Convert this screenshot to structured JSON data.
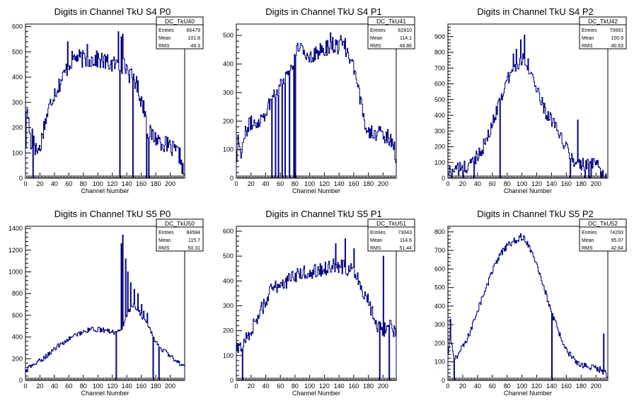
{
  "canvas": {
    "background": "#ffffff",
    "line_color": "#000080"
  },
  "chart_data": [
    {
      "type": "histogram",
      "title": "Digits in Channel TkU S4 P0",
      "xlabel": "Channel Number",
      "ylabel": "",
      "xlim": [
        0,
        220
      ],
      "ylim": [
        0,
        610
      ],
      "xticks": [
        0,
        20,
        40,
        60,
        80,
        100,
        120,
        140,
        160,
        180,
        200
      ],
      "yticks": [
        0,
        100,
        200,
        300,
        400,
        500,
        600
      ],
      "stats": {
        "name": "DC_TkU40",
        "entries": "66479",
        "mean": "101.8",
        "rms": "48.3"
      },
      "profile": [
        [
          0,
          90
        ],
        [
          2,
          290
        ],
        [
          5,
          210
        ],
        [
          8,
          120
        ],
        [
          10,
          215
        ],
        [
          14,
          110
        ],
        [
          20,
          115
        ],
        [
          25,
          200
        ],
        [
          30,
          250
        ],
        [
          35,
          300
        ],
        [
          40,
          340
        ],
        [
          45,
          360
        ],
        [
          50,
          390
        ],
        [
          55,
          420
        ],
        [
          60,
          450
        ],
        [
          65,
          470
        ],
        [
          70,
          480
        ],
        [
          80,
          470
        ],
        [
          90,
          470
        ],
        [
          100,
          470
        ],
        [
          110,
          460
        ],
        [
          120,
          450
        ],
        [
          130,
          450
        ],
        [
          140,
          440
        ],
        [
          145,
          400
        ],
        [
          150,
          400
        ],
        [
          155,
          360
        ],
        [
          160,
          310
        ],
        [
          165,
          270
        ],
        [
          170,
          180
        ],
        [
          180,
          160
        ],
        [
          190,
          140
        ],
        [
          200,
          120
        ],
        [
          210,
          100
        ],
        [
          215,
          80
        ],
        [
          218,
          20
        ]
      ],
      "noise": 35,
      "dips": [
        [
          10,
          0
        ],
        [
          130,
          0
        ],
        [
          148,
          0
        ],
        [
          167,
          0
        ],
        [
          170,
          0
        ]
      ],
      "spikes": [
        [
          58,
          540
        ],
        [
          85,
          530
        ],
        [
          128,
          580
        ],
        [
          132,
          560
        ],
        [
          134,
          570
        ]
      ]
    },
    {
      "type": "histogram",
      "title": "Digits in Channel TkU S4 P1",
      "xlabel": "Channel Number",
      "ylabel": "",
      "xlim": [
        0,
        218
      ],
      "ylim": [
        0,
        540
      ],
      "xticks": [
        0,
        20,
        40,
        60,
        80,
        100,
        120,
        140,
        160,
        180,
        200
      ],
      "yticks": [
        0,
        100,
        200,
        300,
        400,
        500
      ],
      "stats": {
        "name": "DC_TkU41",
        "entries": "62810",
        "mean": "114.1",
        "rms": "49.86"
      },
      "profile": [
        [
          0,
          40
        ],
        [
          2,
          150
        ],
        [
          6,
          90
        ],
        [
          10,
          130
        ],
        [
          15,
          180
        ],
        [
          20,
          190
        ],
        [
          30,
          200
        ],
        [
          40,
          230
        ],
        [
          50,
          290
        ],
        [
          60,
          330
        ],
        [
          70,
          370
        ],
        [
          80,
          420
        ],
        [
          85,
          470
        ],
        [
          90,
          440
        ],
        [
          100,
          430
        ],
        [
          110,
          440
        ],
        [
          120,
          450
        ],
        [
          130,
          470
        ],
        [
          140,
          460
        ],
        [
          150,
          450
        ],
        [
          160,
          380
        ],
        [
          165,
          320
        ],
        [
          170,
          260
        ],
        [
          175,
          200
        ],
        [
          180,
          170
        ],
        [
          190,
          160
        ],
        [
          200,
          150
        ],
        [
          210,
          140
        ],
        [
          215,
          120
        ],
        [
          217,
          70
        ]
      ],
      "noise": 28,
      "dips": [
        [
          48,
          0
        ],
        [
          53,
          0
        ],
        [
          57,
          0
        ],
        [
          62,
          0
        ],
        [
          66,
          0
        ],
        [
          72,
          0
        ],
        [
          78,
          0
        ],
        [
          80,
          0
        ]
      ],
      "spikes": [
        [
          128,
          510
        ],
        [
          142,
          500
        ],
        [
          148,
          490
        ]
      ]
    },
    {
      "type": "histogram",
      "title": "Digits in Channel TkU S4 P2",
      "xlabel": "Channel Number",
      "ylabel": "",
      "xlim": [
        0,
        216
      ],
      "ylim": [
        0,
        980
      ],
      "xticks": [
        0,
        20,
        40,
        60,
        80,
        100,
        120,
        140,
        160,
        180,
        200
      ],
      "yticks": [
        0,
        100,
        200,
        300,
        400,
        500,
        600,
        700,
        800,
        900
      ],
      "stats": {
        "name": "DC_TkU42",
        "entries": "70691",
        "mean": "100.9",
        "rms": "40.53"
      },
      "profile": [
        [
          0,
          30
        ],
        [
          5,
          60
        ],
        [
          10,
          70
        ],
        [
          15,
          50
        ],
        [
          20,
          80
        ],
        [
          25,
          60
        ],
        [
          30,
          90
        ],
        [
          35,
          120
        ],
        [
          40,
          150
        ],
        [
          45,
          180
        ],
        [
          50,
          220
        ],
        [
          55,
          270
        ],
        [
          60,
          340
        ],
        [
          65,
          420
        ],
        [
          70,
          500
        ],
        [
          75,
          560
        ],
        [
          80,
          620
        ],
        [
          85,
          660
        ],
        [
          90,
          700
        ],
        [
          95,
          720
        ],
        [
          100,
          760
        ],
        [
          105,
          760
        ],
        [
          110,
          700
        ],
        [
          115,
          640
        ],
        [
          120,
          560
        ],
        [
          125,
          500
        ],
        [
          130,
          440
        ],
        [
          135,
          400
        ],
        [
          140,
          370
        ],
        [
          145,
          320
        ],
        [
          150,
          280
        ],
        [
          155,
          240
        ],
        [
          160,
          190
        ],
        [
          165,
          150
        ],
        [
          170,
          110
        ],
        [
          175,
          90
        ],
        [
          180,
          80
        ],
        [
          190,
          90
        ],
        [
          200,
          80
        ],
        [
          205,
          60
        ],
        [
          210,
          30
        ],
        [
          214,
          10
        ]
      ],
      "noise": 45,
      "dips": [
        [
          5,
          0
        ],
        [
          20,
          0
        ],
        [
          35,
          0
        ],
        [
          70,
          0
        ],
        [
          165,
          0
        ],
        [
          185,
          0
        ],
        [
          190,
          0
        ],
        [
          193,
          0
        ],
        [
          206,
          0
        ],
        [
          210,
          0
        ]
      ],
      "spikes": [
        [
          103,
          910
        ],
        [
          98,
          880
        ],
        [
          175,
          370
        ],
        [
          92,
          820
        ],
        [
          88,
          790
        ]
      ]
    },
    {
      "type": "histogram",
      "title": "Digits in Channel TkU S5 P0",
      "xlabel": "Channel Number",
      "ylabel": "",
      "xlim": [
        0,
        220
      ],
      "ylim": [
        0,
        1420
      ],
      "xticks": [
        0,
        20,
        40,
        60,
        80,
        100,
        120,
        140,
        160,
        180,
        200
      ],
      "yticks": [
        0,
        200,
        400,
        600,
        800,
        1000,
        1200,
        1400
      ],
      "stats": {
        "name": "DC_TkU50",
        "entries": "84584",
        "mean": "115.7",
        "rms": "50.31"
      },
      "profile": [
        [
          0,
          80
        ],
        [
          5,
          120
        ],
        [
          10,
          140
        ],
        [
          20,
          180
        ],
        [
          30,
          230
        ],
        [
          40,
          290
        ],
        [
          50,
          340
        ],
        [
          60,
          380
        ],
        [
          70,
          420
        ],
        [
          80,
          450
        ],
        [
          90,
          470
        ],
        [
          100,
          470
        ],
        [
          110,
          460
        ],
        [
          120,
          450
        ],
        [
          125,
          440
        ],
        [
          130,
          450
        ],
        [
          135,
          480
        ],
        [
          140,
          600
        ],
        [
          150,
          700
        ],
        [
          160,
          600
        ],
        [
          170,
          500
        ],
        [
          180,
          350
        ],
        [
          190,
          280
        ],
        [
          200,
          220
        ],
        [
          210,
          180
        ],
        [
          215,
          150
        ],
        [
          218,
          130
        ]
      ],
      "noise": 22,
      "dips": [
        [
          125,
          0
        ],
        [
          176,
          0
        ],
        [
          184,
          0
        ]
      ],
      "spikes": [
        [
          134,
          1340
        ],
        [
          132,
          1260
        ],
        [
          138,
          1120
        ],
        [
          141,
          1000
        ],
        [
          145,
          900
        ],
        [
          150,
          840
        ],
        [
          155,
          800
        ],
        [
          160,
          700
        ],
        [
          163,
          640
        ],
        [
          168,
          620
        ]
      ]
    },
    {
      "type": "histogram",
      "title": "Digits in Channel TkU S5 P1",
      "xlabel": "Channel Number",
      "ylabel": "",
      "xlim": [
        0,
        218
      ],
      "ylim": [
        0,
        620
      ],
      "xticks": [
        0,
        20,
        40,
        60,
        80,
        100,
        120,
        140,
        160,
        180,
        200
      ],
      "yticks": [
        0,
        100,
        200,
        300,
        400,
        500,
        600
      ],
      "stats": {
        "name": "DC_TkU51",
        "entries": "73043",
        "mean": "114.6",
        "rms": "51.44"
      },
      "profile": [
        [
          0,
          120
        ],
        [
          5,
          130
        ],
        [
          10,
          150
        ],
        [
          15,
          180
        ],
        [
          20,
          200
        ],
        [
          25,
          230
        ],
        [
          30,
          260
        ],
        [
          35,
          290
        ],
        [
          40,
          320
        ],
        [
          45,
          350
        ],
        [
          50,
          370
        ],
        [
          55,
          380
        ],
        [
          60,
          390
        ],
        [
          70,
          400
        ],
        [
          80,
          420
        ],
        [
          90,
          430
        ],
        [
          100,
          440
        ],
        [
          110,
          440
        ],
        [
          120,
          450
        ],
        [
          130,
          460
        ],
        [
          140,
          460
        ],
        [
          150,
          450
        ],
        [
          160,
          440
        ],
        [
          165,
          420
        ],
        [
          170,
          380
        ],
        [
          175,
          350
        ],
        [
          180,
          320
        ],
        [
          185,
          280
        ],
        [
          190,
          240
        ],
        [
          195,
          210
        ],
        [
          200,
          200
        ],
        [
          205,
          220
        ],
        [
          210,
          240
        ],
        [
          214,
          200
        ]
      ],
      "noise": 30,
      "dips": [
        [
          8,
          0
        ],
        [
          195,
          0
        ],
        [
          208,
          0
        ]
      ],
      "spikes": [
        [
          148,
          570
        ],
        [
          135,
          550
        ],
        [
          160,
          530
        ],
        [
          200,
          500
        ]
      ]
    },
    {
      "type": "histogram",
      "title": "Digits in Channel TkU S5 P2",
      "xlabel": "Channel Number",
      "ylabel": "",
      "xlim": [
        0,
        216
      ],
      "ylim": [
        0,
        830
      ],
      "xticks": [
        0,
        20,
        40,
        60,
        80,
        100,
        120,
        140,
        160,
        180,
        200
      ],
      "yticks": [
        0,
        100,
        200,
        300,
        400,
        500,
        600,
        700,
        800
      ],
      "stats": {
        "name": "DC_TkU52",
        "entries": "74293",
        "mean": "95.07",
        "rms": "42.64"
      },
      "profile": [
        [
          0,
          120
        ],
        [
          3,
          250
        ],
        [
          6,
          160
        ],
        [
          10,
          120
        ],
        [
          15,
          150
        ],
        [
          20,
          180
        ],
        [
          25,
          210
        ],
        [
          30,
          260
        ],
        [
          35,
          320
        ],
        [
          40,
          380
        ],
        [
          45,
          430
        ],
        [
          50,
          480
        ],
        [
          55,
          530
        ],
        [
          60,
          590
        ],
        [
          65,
          630
        ],
        [
          70,
          670
        ],
        [
          75,
          700
        ],
        [
          80,
          720
        ],
        [
          85,
          740
        ],
        [
          90,
          750
        ],
        [
          95,
          760
        ],
        [
          100,
          770
        ],
        [
          105,
          750
        ],
        [
          110,
          720
        ],
        [
          115,
          680
        ],
        [
          120,
          630
        ],
        [
          125,
          570
        ],
        [
          130,
          500
        ],
        [
          135,
          430
        ],
        [
          140,
          360
        ],
        [
          145,
          310
        ],
        [
          150,
          260
        ],
        [
          155,
          210
        ],
        [
          160,
          170
        ],
        [
          165,
          140
        ],
        [
          170,
          110
        ],
        [
          175,
          90
        ],
        [
          180,
          80
        ],
        [
          185,
          80
        ],
        [
          190,
          70
        ],
        [
          195,
          70
        ],
        [
          200,
          60
        ],
        [
          205,
          60
        ],
        [
          210,
          50
        ],
        [
          214,
          30
        ]
      ],
      "noise": 18,
      "dips": [
        [
          140,
          0
        ],
        [
          8,
          0
        ]
      ],
      "spikes": [
        [
          3,
          330
        ],
        [
          98,
          790
        ],
        [
          102,
          780
        ],
        [
          210,
          250
        ]
      ]
    }
  ]
}
